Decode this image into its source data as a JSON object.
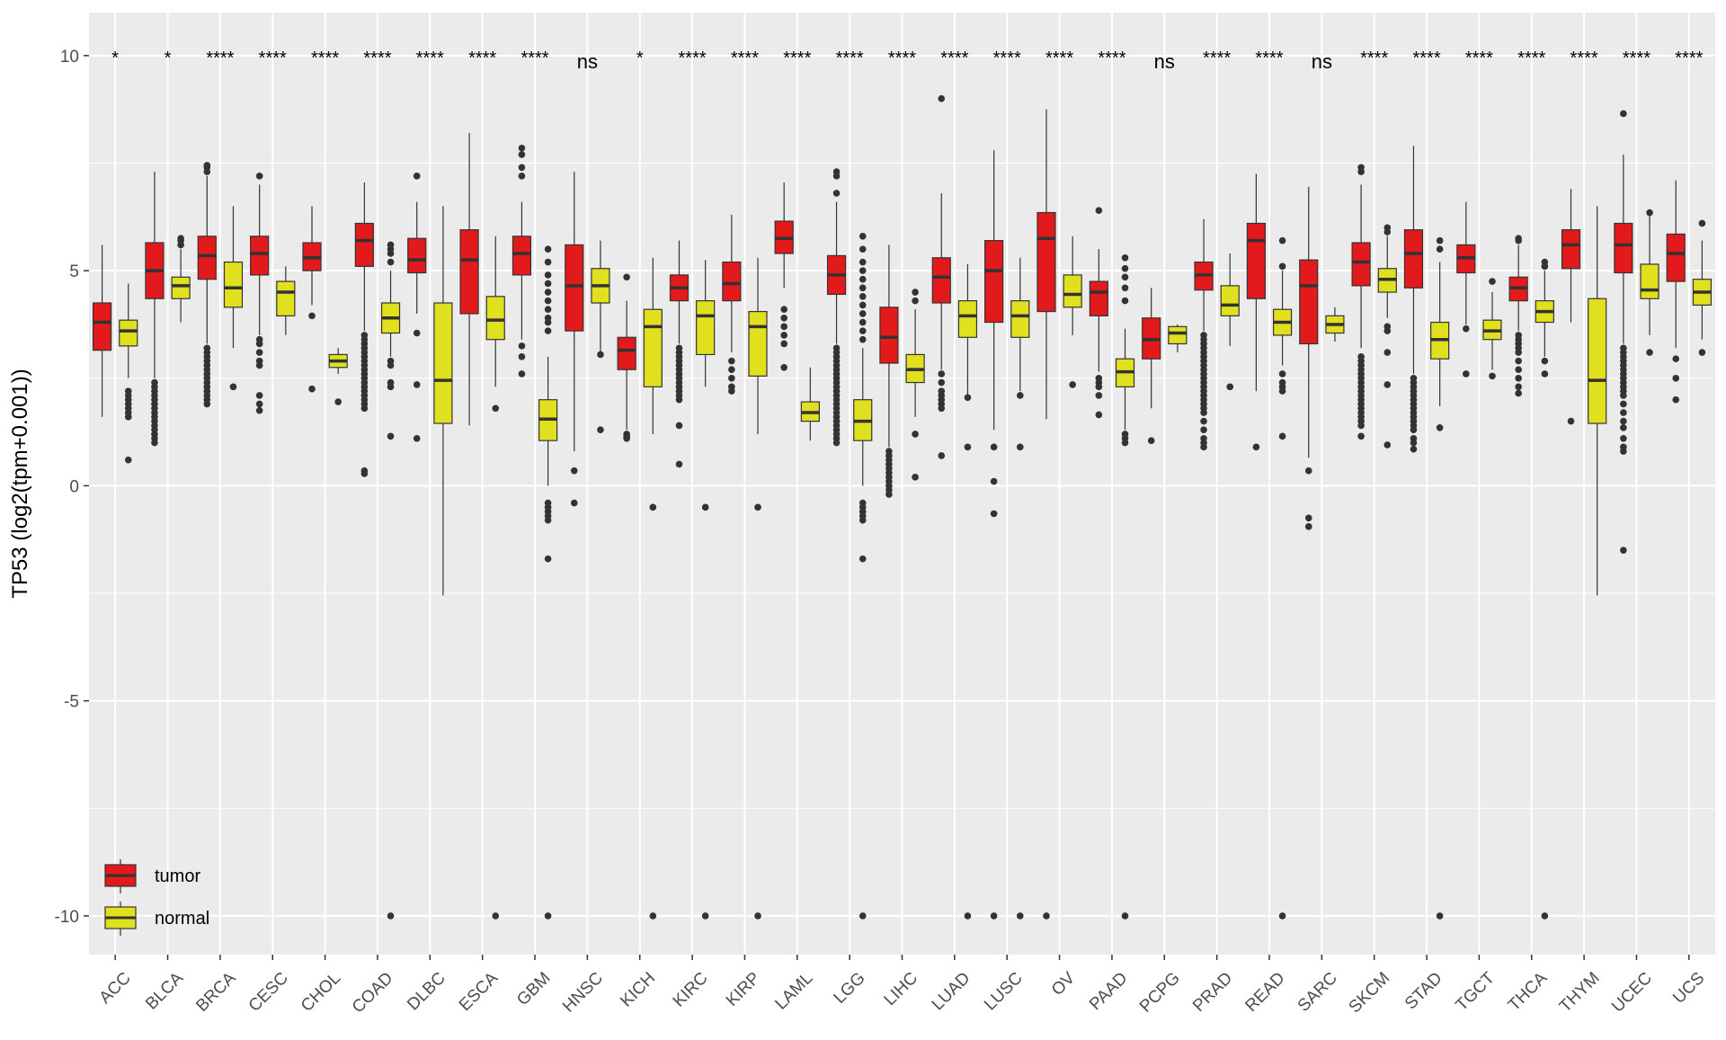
{
  "chart_data": {
    "type": "box",
    "ylabel": "TP53 (log2(tpm+0.001))",
    "xlabel": "",
    "ylim": [
      -10.9,
      11.0
    ],
    "yticks": [
      10,
      5,
      0,
      -5,
      -10
    ],
    "ytick_labels": [
      "10",
      "5",
      "0",
      "-5",
      "-10"
    ],
    "grid": true,
    "legend_position": "bottom-left",
    "colors": {
      "tumor": "#e31a1c",
      "normal": "#e0e01e",
      "panel": "#ebebeb",
      "grid": "#ffffff"
    },
    "legend": [
      {
        "key": "tumor",
        "label": "tumor"
      },
      {
        "key": "normal",
        "label": "normal"
      }
    ],
    "categories": [
      {
        "name": "ACC",
        "sig": "*",
        "tumor": {
          "q1": 3.15,
          "med": 3.8,
          "q3": 4.25,
          "lo": 1.6,
          "hi": 5.6,
          "out": []
        },
        "normal": {
          "q1": 3.25,
          "med": 3.6,
          "q3": 3.85,
          "lo": 2.5,
          "hi": 4.7,
          "out": [
            2.2,
            2.1,
            2.0,
            1.9,
            1.8,
            1.7,
            1.6,
            0.6
          ]
        }
      },
      {
        "name": "BLCA",
        "sig": "*",
        "tumor": {
          "q1": 4.35,
          "med": 5.0,
          "q3": 5.65,
          "lo": 2.5,
          "hi": 7.3,
          "out": [
            2.4,
            2.3,
            2.2,
            2.1,
            2.0,
            1.9,
            1.8,
            1.7,
            1.6,
            1.5,
            1.4,
            1.3,
            1.2,
            1.1,
            1.0
          ]
        },
        "normal": {
          "q1": 4.35,
          "med": 4.65,
          "q3": 4.85,
          "lo": 3.8,
          "hi": 5.5,
          "out": [
            5.6,
            5.7,
            5.75
          ]
        }
      },
      {
        "name": "BRCA",
        "sig": "****",
        "tumor": {
          "q1": 4.8,
          "med": 5.35,
          "q3": 5.8,
          "lo": 3.3,
          "hi": 7.2,
          "out": [
            7.3,
            7.4,
            7.45,
            3.2,
            3.1,
            3.0,
            2.9,
            2.8,
            2.7,
            2.6,
            2.5,
            2.4,
            2.3,
            2.2,
            2.1,
            2.0,
            1.9
          ]
        },
        "normal": {
          "q1": 4.15,
          "med": 4.6,
          "q3": 5.2,
          "lo": 3.2,
          "hi": 6.5,
          "out": [
            2.3
          ]
        }
      },
      {
        "name": "CESC",
        "sig": "****",
        "tumor": {
          "q1": 4.9,
          "med": 5.4,
          "q3": 5.8,
          "lo": 3.5,
          "hi": 7.0,
          "out": [
            7.2,
            3.4,
            3.3,
            3.1,
            2.9,
            2.8,
            2.1,
            1.9,
            1.75
          ]
        },
        "normal": {
          "q1": 3.95,
          "med": 4.5,
          "q3": 4.75,
          "lo": 3.5,
          "hi": 5.1,
          "out": []
        }
      },
      {
        "name": "CHOL",
        "sig": "****",
        "tumor": {
          "q1": 5.0,
          "med": 5.3,
          "q3": 5.65,
          "lo": 4.2,
          "hi": 6.5,
          "out": [
            3.95,
            2.25
          ]
        },
        "normal": {
          "q1": 2.75,
          "med": 2.9,
          "q3": 3.05,
          "lo": 2.6,
          "hi": 3.2,
          "out": [
            1.95
          ]
        }
      },
      {
        "name": "COAD",
        "sig": "****",
        "tumor": {
          "q1": 5.1,
          "med": 5.7,
          "q3": 6.1,
          "lo": 3.6,
          "hi": 7.05,
          "out": [
            3.5,
            3.4,
            3.3,
            3.2,
            3.1,
            3.0,
            2.9,
            2.8,
            2.7,
            2.6,
            2.5,
            2.4,
            2.3,
            2.2,
            2.1,
            2.0,
            1.9,
            1.8,
            0.35,
            0.28
          ]
        },
        "normal": {
          "q1": 3.55,
          "med": 3.9,
          "q3": 4.25,
          "lo": 3.0,
          "hi": 5.0,
          "out": [
            5.2,
            5.4,
            5.5,
            5.6,
            2.9,
            2.8,
            2.4,
            2.3,
            1.15,
            -10.0
          ]
        }
      },
      {
        "name": "DLBC",
        "sig": "****",
        "tumor": {
          "q1": 4.95,
          "med": 5.25,
          "q3": 5.75,
          "lo": 4.0,
          "hi": 6.6,
          "out": [
            7.2,
            3.55,
            2.35,
            1.1
          ]
        },
        "normal": {
          "q1": 1.45,
          "med": 2.45,
          "q3": 4.25,
          "lo": -2.55,
          "hi": 6.5,
          "out": []
        }
      },
      {
        "name": "ESCA",
        "sig": "****",
        "tumor": {
          "q1": 4.0,
          "med": 5.25,
          "q3": 5.95,
          "lo": 1.4,
          "hi": 8.2,
          "out": []
        },
        "normal": {
          "q1": 3.4,
          "med": 3.85,
          "q3": 4.4,
          "lo": 2.3,
          "hi": 5.8,
          "out": [
            1.8,
            -10.0
          ]
        }
      },
      {
        "name": "GBM",
        "sig": "****",
        "tumor": {
          "q1": 4.9,
          "med": 5.4,
          "q3": 5.8,
          "lo": 3.4,
          "hi": 6.6,
          "out": [
            7.85,
            7.7,
            7.4,
            7.2,
            3.25,
            3.0,
            2.6
          ]
        },
        "normal": {
          "q1": 1.05,
          "med": 1.55,
          "q3": 2.0,
          "lo": 0.0,
          "hi": 3.0,
          "out": [
            3.6,
            3.8,
            3.9,
            4.1,
            4.3,
            4.5,
            4.7,
            4.9,
            5.2,
            5.5,
            -0.4,
            -0.5,
            -0.6,
            -0.7,
            -0.8,
            -1.7,
            -10.0
          ]
        }
      },
      {
        "name": "HNSC",
        "sig": "ns",
        "tumor": {
          "q1": 3.6,
          "med": 4.65,
          "q3": 5.6,
          "lo": 0.8,
          "hi": 7.3,
          "out": [
            0.35,
            -0.4
          ]
        },
        "normal": {
          "q1": 4.25,
          "med": 4.65,
          "q3": 5.05,
          "lo": 3.1,
          "hi": 5.7,
          "out": [
            3.05,
            1.3
          ]
        }
      },
      {
        "name": "KICH",
        "sig": "*",
        "tumor": {
          "q1": 2.7,
          "med": 3.15,
          "q3": 3.45,
          "lo": 1.3,
          "hi": 4.3,
          "out": [
            4.85,
            1.2,
            1.15,
            1.1
          ]
        },
        "normal": {
          "q1": 2.3,
          "med": 3.7,
          "q3": 4.1,
          "lo": 1.2,
          "hi": 5.3,
          "out": [
            -0.5,
            -10.0
          ]
        }
      },
      {
        "name": "KIRC",
        "sig": "****",
        "tumor": {
          "q1": 4.3,
          "med": 4.6,
          "q3": 4.9,
          "lo": 3.3,
          "hi": 5.7,
          "out": [
            3.2,
            3.1,
            3.0,
            2.9,
            2.8,
            2.7,
            2.6,
            2.5,
            2.4,
            2.3,
            2.2,
            2.1,
            2.0,
            1.4,
            0.5
          ]
        },
        "normal": {
          "q1": 3.05,
          "med": 3.95,
          "q3": 4.3,
          "lo": 2.3,
          "hi": 5.25,
          "out": [
            -0.5,
            -10.0
          ]
        }
      },
      {
        "name": "KIRP",
        "sig": "****",
        "tumor": {
          "q1": 4.3,
          "med": 4.7,
          "q3": 5.2,
          "lo": 3.1,
          "hi": 6.3,
          "out": [
            2.9,
            2.7,
            2.5,
            2.3,
            2.2
          ]
        },
        "normal": {
          "q1": 2.55,
          "med": 3.7,
          "q3": 4.05,
          "lo": 1.2,
          "hi": 5.3,
          "out": [
            -0.5,
            -10.0
          ]
        }
      },
      {
        "name": "LAML",
        "sig": "****",
        "tumor": {
          "q1": 5.4,
          "med": 5.75,
          "q3": 6.15,
          "lo": 4.6,
          "hi": 7.05,
          "out": [
            4.1,
            3.9,
            3.7,
            3.5,
            3.3,
            2.75
          ]
        },
        "normal": {
          "q1": 1.5,
          "med": 1.7,
          "q3": 1.95,
          "lo": 1.05,
          "hi": 2.75,
          "out": []
        }
      },
      {
        "name": "LGG",
        "sig": "****",
        "tumor": {
          "q1": 4.45,
          "med": 4.9,
          "q3": 5.35,
          "lo": 3.3,
          "hi": 6.6,
          "out": [
            6.8,
            7.2,
            7.3,
            3.2,
            3.1,
            3.0,
            2.9,
            2.8,
            2.7,
            2.6,
            2.5,
            2.4,
            2.3,
            2.2,
            2.1,
            2.0,
            1.9,
            1.8,
            1.7,
            1.6,
            1.5,
            1.4,
            1.3,
            1.2,
            1.1,
            1.0
          ]
        },
        "normal": {
          "q1": 1.05,
          "med": 1.5,
          "q3": 2.0,
          "lo": 0.0,
          "hi": 3.2,
          "out": [
            3.4,
            3.6,
            3.8,
            4.0,
            4.2,
            4.4,
            4.6,
            4.8,
            5.0,
            5.2,
            5.5,
            5.8,
            -0.4,
            -0.5,
            -0.6,
            -0.7,
            -0.8,
            -1.7,
            -10.0
          ]
        }
      },
      {
        "name": "LIHC",
        "sig": "****",
        "tumor": {
          "q1": 2.85,
          "med": 3.45,
          "q3": 4.15,
          "lo": 0.9,
          "hi": 5.6,
          "out": [
            0.8,
            0.7,
            0.6,
            0.5,
            0.4,
            0.3,
            0.2,
            0.1,
            0.0,
            -0.1,
            -0.2
          ]
        },
        "normal": {
          "q1": 2.4,
          "med": 2.7,
          "q3": 3.05,
          "lo": 1.6,
          "hi": 4.1,
          "out": [
            4.3,
            4.5,
            1.2,
            0.2
          ]
        }
      },
      {
        "name": "LUAD",
        "sig": "****",
        "tumor": {
          "q1": 4.25,
          "med": 4.85,
          "q3": 5.3,
          "lo": 2.7,
          "hi": 6.8,
          "out": [
            9.0,
            2.6,
            2.4,
            2.2,
            2.1,
            2.0,
            1.9,
            1.8,
            0.7
          ]
        },
        "normal": {
          "q1": 3.45,
          "med": 3.95,
          "q3": 4.3,
          "lo": 2.1,
          "hi": 5.15,
          "out": [
            2.05,
            0.9,
            -10.0
          ]
        }
      },
      {
        "name": "LUSC",
        "sig": "****",
        "tumor": {
          "q1": 3.8,
          "med": 5.0,
          "q3": 5.7,
          "lo": 1.3,
          "hi": 7.8,
          "out": [
            0.9,
            0.1,
            -0.65,
            -10.0
          ]
        },
        "normal": {
          "q1": 3.45,
          "med": 3.95,
          "q3": 4.3,
          "lo": 2.2,
          "hi": 5.3,
          "out": [
            2.1,
            0.9,
            -10.0
          ]
        }
      },
      {
        "name": "OV",
        "sig": "****",
        "tumor": {
          "q1": 4.05,
          "med": 5.75,
          "q3": 6.35,
          "lo": 1.55,
          "hi": 8.75,
          "out": [
            -10.0
          ]
        },
        "normal": {
          "q1": 4.15,
          "med": 4.45,
          "q3": 4.9,
          "lo": 3.5,
          "hi": 5.8,
          "out": [
            2.35
          ]
        }
      },
      {
        "name": "PAAD",
        "sig": "****",
        "tumor": {
          "q1": 3.95,
          "med": 4.5,
          "q3": 4.75,
          "lo": 2.65,
          "hi": 5.5,
          "out": [
            6.4,
            2.5,
            2.4,
            2.3,
            2.1,
            1.65
          ]
        },
        "normal": {
          "q1": 2.3,
          "med": 2.65,
          "q3": 2.95,
          "lo": 1.3,
          "hi": 3.65,
          "out": [
            4.3,
            4.6,
            4.85,
            5.05,
            5.3,
            1.2,
            1.1,
            1.0,
            -10.0
          ]
        }
      },
      {
        "name": "PCPG",
        "sig": "ns",
        "tumor": {
          "q1": 2.95,
          "med": 3.4,
          "q3": 3.9,
          "lo": 1.8,
          "hi": 4.6,
          "out": [
            1.05
          ]
        },
        "normal": {
          "q1": 3.3,
          "med": 3.55,
          "q3": 3.7,
          "lo": 3.1,
          "hi": 3.75,
          "out": []
        }
      },
      {
        "name": "PRAD",
        "sig": "****",
        "tumor": {
          "q1": 4.55,
          "med": 4.9,
          "q3": 5.2,
          "lo": 3.6,
          "hi": 6.2,
          "out": [
            3.5,
            3.4,
            3.3,
            3.2,
            3.1,
            3.0,
            2.9,
            2.8,
            2.7,
            2.6,
            2.5,
            2.4,
            2.3,
            2.2,
            2.1,
            2.0,
            1.9,
            1.8,
            1.7,
            1.5,
            1.3,
            1.1,
            1.0,
            0.9
          ]
        },
        "normal": {
          "q1": 3.95,
          "med": 4.2,
          "q3": 4.65,
          "lo": 3.25,
          "hi": 5.4,
          "out": [
            2.3
          ]
        }
      },
      {
        "name": "READ",
        "sig": "****",
        "tumor": {
          "q1": 4.35,
          "med": 5.7,
          "q3": 6.1,
          "lo": 2.2,
          "hi": 7.25,
          "out": [
            0.9
          ]
        },
        "normal": {
          "q1": 3.5,
          "med": 3.8,
          "q3": 4.1,
          "lo": 2.8,
          "hi": 5.0,
          "out": [
            5.1,
            5.7,
            2.6,
            2.4,
            2.3,
            2.2,
            1.15,
            -10.0
          ]
        }
      },
      {
        "name": "SARC",
        "sig": "ns",
        "tumor": {
          "q1": 3.3,
          "med": 4.65,
          "q3": 5.25,
          "lo": 0.65,
          "hi": 6.95,
          "out": [
            0.35,
            -0.75,
            -0.95
          ]
        },
        "normal": {
          "q1": 3.55,
          "med": 3.75,
          "q3": 3.95,
          "lo": 3.35,
          "hi": 4.15,
          "out": []
        }
      },
      {
        "name": "SKCM",
        "sig": "****",
        "tumor": {
          "q1": 4.65,
          "med": 5.2,
          "q3": 5.65,
          "lo": 3.2,
          "hi": 7.0,
          "out": [
            7.3,
            7.4,
            3.0,
            2.9,
            2.8,
            2.7,
            2.6,
            2.5,
            2.4,
            2.3,
            2.2,
            2.1,
            2.0,
            1.9,
            1.8,
            1.7,
            1.6,
            1.5,
            1.4,
            1.15
          ]
        },
        "normal": {
          "q1": 4.5,
          "med": 4.8,
          "q3": 5.05,
          "lo": 3.9,
          "hi": 5.8,
          "out": [
            5.9,
            6.0,
            3.7,
            3.6,
            3.1,
            2.35,
            0.95
          ]
        }
      },
      {
        "name": "STAD",
        "sig": "****",
        "tumor": {
          "q1": 4.6,
          "med": 5.4,
          "q3": 5.95,
          "lo": 2.6,
          "hi": 7.9,
          "out": [
            2.5,
            2.4,
            2.3,
            2.2,
            2.1,
            2.0,
            1.9,
            1.8,
            1.7,
            1.6,
            1.5,
            1.4,
            1.3,
            1.1,
            1.0,
            0.85
          ]
        },
        "normal": {
          "q1": 2.95,
          "med": 3.4,
          "q3": 3.8,
          "lo": 1.85,
          "hi": 5.2,
          "out": [
            5.5,
            5.7,
            1.35,
            -10.0
          ]
        }
      },
      {
        "name": "TGCT",
        "sig": "****",
        "tumor": {
          "q1": 4.95,
          "med": 5.3,
          "q3": 5.6,
          "lo": 3.75,
          "hi": 6.6,
          "out": [
            3.65,
            2.6
          ]
        },
        "normal": {
          "q1": 3.4,
          "med": 3.6,
          "q3": 3.85,
          "lo": 2.7,
          "hi": 4.5,
          "out": [
            4.75,
            2.55
          ]
        }
      },
      {
        "name": "THCA",
        "sig": "****",
        "tumor": {
          "q1": 4.3,
          "med": 4.6,
          "q3": 4.85,
          "lo": 3.6,
          "hi": 5.6,
          "out": [
            5.7,
            5.75,
            3.5,
            3.4,
            3.3,
            3.2,
            3.1,
            2.9,
            2.7,
            2.5,
            2.3,
            2.15
          ]
        },
        "normal": {
          "q1": 3.8,
          "med": 4.05,
          "q3": 4.3,
          "lo": 3.0,
          "hi": 5.0,
          "out": [
            5.1,
            5.2,
            2.9,
            2.6,
            -10.0
          ]
        }
      },
      {
        "name": "THYM",
        "sig": "****",
        "tumor": {
          "q1": 5.05,
          "med": 5.6,
          "q3": 5.95,
          "lo": 3.8,
          "hi": 6.9,
          "out": [
            1.5
          ]
        },
        "normal": {
          "q1": 1.45,
          "med": 2.45,
          "q3": 4.35,
          "lo": -2.55,
          "hi": 6.5,
          "out": []
        }
      },
      {
        "name": "UCEC",
        "sig": "****",
        "tumor": {
          "q1": 4.95,
          "med": 5.6,
          "q3": 6.1,
          "lo": 3.3,
          "hi": 7.7,
          "out": [
            8.65,
            3.2,
            3.1,
            3.0,
            2.9,
            2.8,
            2.7,
            2.6,
            2.5,
            2.4,
            2.3,
            2.2,
            2.1,
            1.9,
            1.7,
            1.5,
            1.35,
            1.1,
            0.9,
            0.8,
            -1.5
          ]
        },
        "normal": {
          "q1": 4.35,
          "med": 4.55,
          "q3": 5.15,
          "lo": 3.5,
          "hi": 6.3,
          "out": [
            6.35,
            3.1
          ]
        }
      },
      {
        "name": "UCS",
        "sig": "****",
        "tumor": {
          "q1": 4.75,
          "med": 5.4,
          "q3": 5.85,
          "lo": 3.2,
          "hi": 7.1,
          "out": [
            2.95,
            2.5,
            2.0
          ]
        },
        "normal": {
          "q1": 4.2,
          "med": 4.5,
          "q3": 4.8,
          "lo": 3.4,
          "hi": 5.7,
          "out": [
            6.1,
            3.1
          ]
        }
      }
    ]
  }
}
